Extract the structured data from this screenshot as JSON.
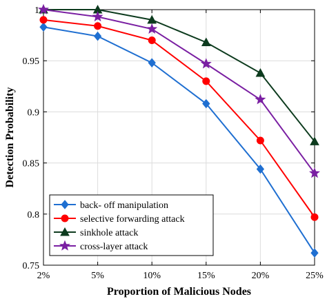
{
  "chart_data": {
    "type": "line",
    "categories": [
      "2%",
      "5%",
      "10%",
      "15%",
      "20%",
      "25%"
    ],
    "xlabel": "Proportion of Malicious Nodes",
    "ylabel": "Detection Probability",
    "ylim": [
      0.75,
      1.0
    ],
    "yticks": [
      "0.75",
      "0.8",
      "0.85",
      "0.9",
      "0.95",
      "1"
    ],
    "grid": true,
    "legend_position": "bottom-left",
    "series": [
      {
        "name": "back- off manipulation",
        "color": "#1f6fd1",
        "marker": "diamond",
        "values": [
          0.983,
          0.974,
          0.948,
          0.908,
          0.844,
          0.762
        ]
      },
      {
        "name": "selective forwarding attack",
        "color": "#ff0000",
        "marker": "circle",
        "values": [
          0.99,
          0.984,
          0.97,
          0.93,
          0.872,
          0.797
        ]
      },
      {
        "name": "sinkhole attack",
        "color": "#0d3b1e",
        "marker": "triangle",
        "values": [
          1.0,
          1.0,
          0.99,
          0.968,
          0.938,
          0.871
        ]
      },
      {
        "name": "cross-layer attack",
        "color": "#7a1fa2",
        "marker": "star",
        "values": [
          1.0,
          0.993,
          0.981,
          0.947,
          0.912,
          0.84
        ]
      }
    ]
  }
}
